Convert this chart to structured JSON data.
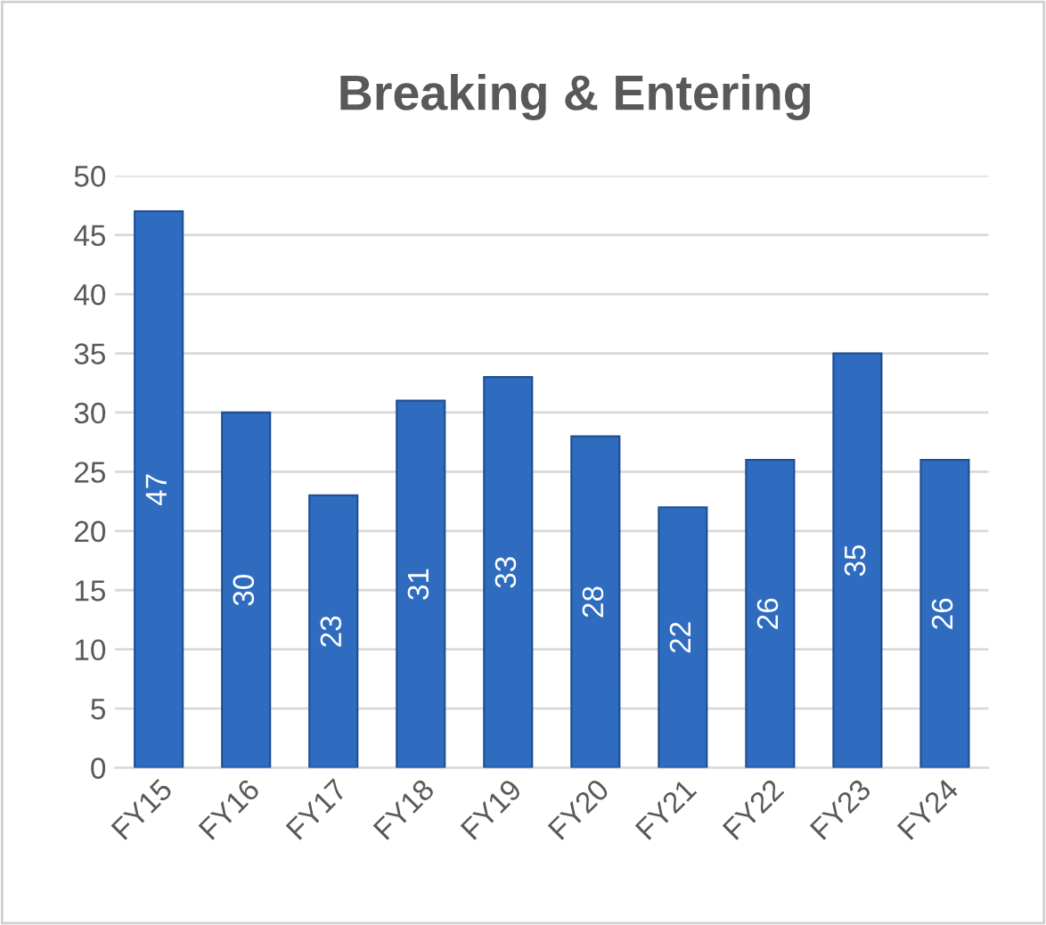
{
  "chart_data": {
    "type": "bar",
    "title": "Breaking & Entering",
    "categories": [
      "FY15",
      "FY16",
      "FY17",
      "FY18",
      "FY19",
      "FY20",
      "FY21",
      "FY22",
      "FY23",
      "FY24"
    ],
    "values": [
      47,
      30,
      23,
      31,
      33,
      28,
      22,
      26,
      35,
      26
    ],
    "color": "#2f6cc0",
    "ylim": [
      0,
      50
    ],
    "yticks": [
      0,
      5,
      10,
      15,
      20,
      25,
      30,
      35,
      40,
      45,
      50
    ],
    "grid": "y",
    "data_labels": true
  }
}
